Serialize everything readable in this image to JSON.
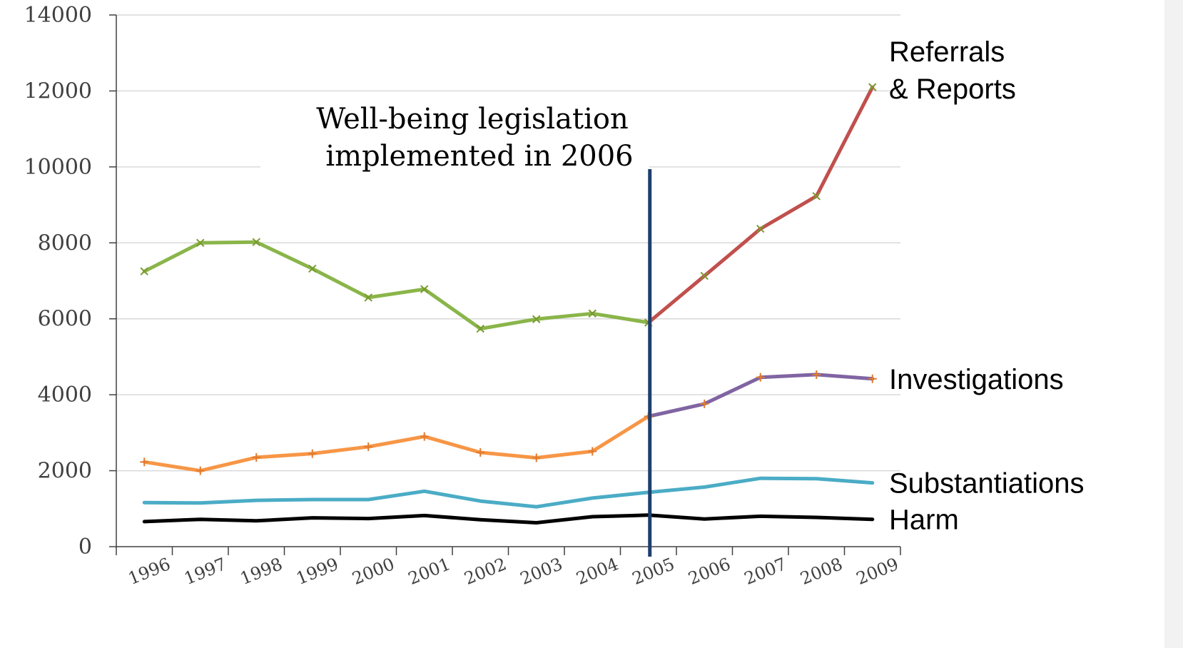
{
  "chart_data": {
    "type": "line",
    "categories": [
      "1996",
      "1997",
      "1998",
      "1999",
      "2000",
      "2001",
      "2002",
      "2003",
      "2004",
      "2005",
      "2006",
      "2007",
      "2008",
      "2009"
    ],
    "ylim": [
      0,
      14000
    ],
    "yticks": [
      "0",
      "2000",
      "4000",
      "6000",
      "8000",
      "10000",
      "12000",
      "14000"
    ],
    "grid": true,
    "annotation": {
      "line1": "Well-being legislation",
      "line2": "implemented in 2006",
      "at_category": "2005",
      "color": "#1f3f6e"
    },
    "series": [
      {
        "name": "Referrals & Reports",
        "label_lines": [
          "Referrals",
          "& Reports"
        ],
        "values": [
          7250,
          8000,
          8020,
          7320,
          6560,
          6780,
          5740,
          5990,
          6140,
          5900,
          7130,
          8370,
          9230,
          12100
        ],
        "color_before": "#8ab54a",
        "color_after": "#c0504d",
        "marker_color": "#7a9a30",
        "marker": "x"
      },
      {
        "name": "Investigations",
        "label_lines": [
          "Investigations"
        ],
        "values": [
          2230,
          2000,
          2350,
          2450,
          2630,
          2900,
          2480,
          2340,
          2510,
          3430,
          3760,
          4460,
          4530,
          4420
        ],
        "color_before": "#f79646",
        "color_after": "#8064a2",
        "marker_color": "#e07b30",
        "marker": "+"
      },
      {
        "name": "Substantiations",
        "label_lines": [
          "Substantiations"
        ],
        "values": [
          1160,
          1150,
          1220,
          1240,
          1240,
          1460,
          1200,
          1050,
          1280,
          1430,
          1570,
          1800,
          1790,
          1680
        ],
        "color_before": "#4bacc6",
        "color_after": "#4bacc6",
        "marker": "none"
      },
      {
        "name": "Harm",
        "label_lines": [
          "Harm"
        ],
        "values": [
          660,
          720,
          680,
          760,
          740,
          820,
          710,
          630,
          790,
          830,
          730,
          800,
          770,
          720
        ],
        "color_before": "#000000",
        "color_after": "#000000",
        "marker": "none"
      }
    ]
  }
}
